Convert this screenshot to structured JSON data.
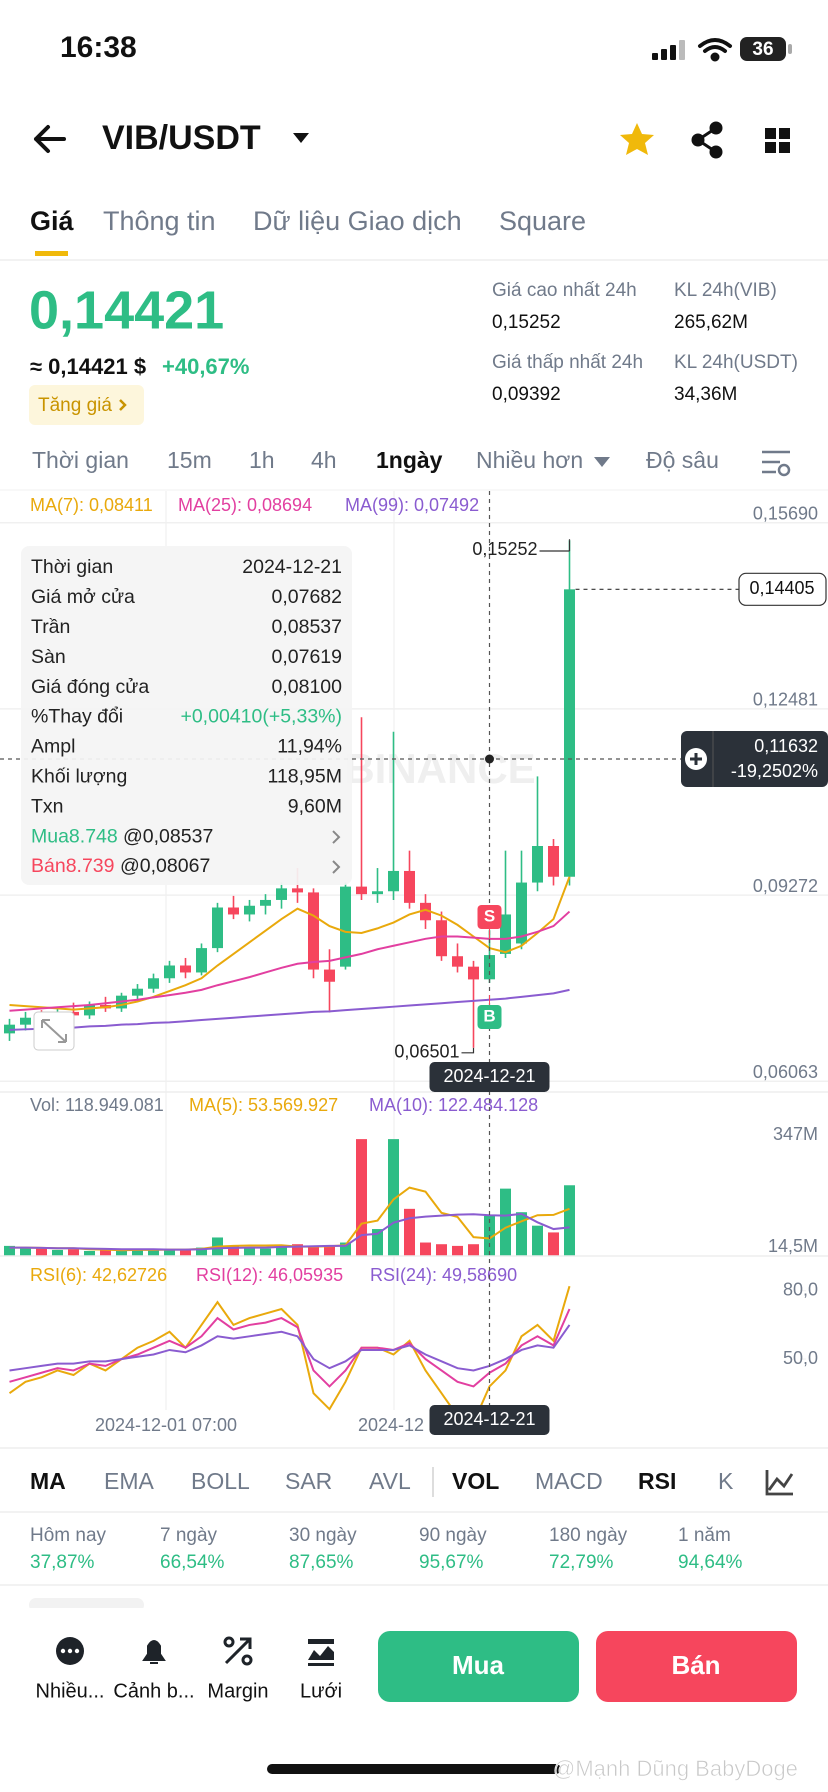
{
  "status_bar": {
    "time": "16:38",
    "battery": "36"
  },
  "header": {
    "pair": "VIB/USDT"
  },
  "tabs": [
    "Giá",
    "Thông tin",
    "Dữ liệu Giao dịch",
    "Square"
  ],
  "price": {
    "last": "0,14421",
    "approx": "≈ 0,14421 $",
    "change": "+40,67%",
    "badge": "Tăng giá"
  },
  "stats": [
    {
      "label": "Giá cao nhất 24h",
      "value": "0,15252"
    },
    {
      "label": "KL 24h(VIB)",
      "value": "265,62M"
    },
    {
      "label": "Giá thấp nhất 24h",
      "value": "0,09392"
    },
    {
      "label": "KL 24h(USDT)",
      "value": "34,36M"
    }
  ],
  "intervals": [
    "Thời gian",
    "15m",
    "1h",
    "4h",
    "1ngày",
    "Nhiều hơn",
    "Độ sâu"
  ],
  "chart_data": {
    "type": "candlestick",
    "ylim": [
      0.0586,
      0.161
    ],
    "yticks": [
      {
        "value": 0.1569,
        "label": "0,15690"
      },
      {
        "value": 0.12481,
        "label": "0,12481"
      },
      {
        "value": 0.09272,
        "label": "0,09272"
      },
      {
        "value": 0.06063,
        "label": "0,06063"
      }
    ],
    "ohlc": [
      [
        0.0675,
        0.07,
        0.0662,
        0.069
      ],
      [
        0.069,
        0.0712,
        0.068,
        0.0702
      ],
      [
        0.0702,
        0.0715,
        0.069,
        0.0698
      ],
      [
        0.0698,
        0.072,
        0.0692,
        0.0712
      ],
      [
        0.0712,
        0.0728,
        0.07,
        0.0706
      ],
      [
        0.0706,
        0.073,
        0.07,
        0.0724
      ],
      [
        0.0724,
        0.0738,
        0.0712,
        0.0718
      ],
      [
        0.0718,
        0.0745,
        0.0712,
        0.074
      ],
      [
        0.074,
        0.076,
        0.073,
        0.0752
      ],
      [
        0.0752,
        0.0778,
        0.0745,
        0.077
      ],
      [
        0.077,
        0.08,
        0.0762,
        0.0792
      ],
      [
        0.0792,
        0.0805,
        0.077,
        0.078
      ],
      [
        0.078,
        0.083,
        0.0775,
        0.0822
      ],
      [
        0.0822,
        0.09,
        0.0815,
        0.0892
      ],
      [
        0.0892,
        0.0912,
        0.0872,
        0.088
      ],
      [
        0.088,
        0.0905,
        0.0868,
        0.0895
      ],
      [
        0.0895,
        0.0915,
        0.088,
        0.0905
      ],
      [
        0.0905,
        0.0935,
        0.089,
        0.0925
      ],
      [
        0.0925,
        0.096,
        0.09,
        0.0918
      ],
      [
        0.0918,
        0.0925,
        0.077,
        0.0785
      ],
      [
        0.0785,
        0.082,
        0.0711,
        0.0764
      ],
      [
        0.079,
        0.0935,
        0.0785,
        0.0928
      ],
      [
        0.0928,
        0.122,
        0.0905,
        0.0915
      ],
      [
        0.0915,
        0.096,
        0.09,
        0.092
      ],
      [
        0.092,
        0.1195,
        0.0905,
        0.0955
      ],
      [
        0.0955,
        0.099,
        0.089,
        0.09
      ],
      [
        0.09,
        0.0915,
        0.0855,
        0.087
      ],
      [
        0.087,
        0.0885,
        0.08,
        0.0808
      ],
      [
        0.0808,
        0.083,
        0.078,
        0.079
      ],
      [
        0.079,
        0.08,
        0.06501,
        0.0768
      ],
      [
        0.07682,
        0.08537,
        0.07619,
        0.081
      ],
      [
        0.0812,
        0.099,
        0.0805,
        0.088
      ],
      [
        0.083,
        0.099,
        0.082,
        0.0935
      ],
      [
        0.0935,
        0.1118,
        0.092,
        0.0998
      ],
      [
        0.0998,
        0.101,
        0.093,
        0.0945
      ],
      [
        0.0945,
        0.15252,
        0.093,
        0.14405
      ]
    ],
    "ma": [
      {
        "name": "MA(7): 0,08411",
        "color": "#e9a90c",
        "values": [
          0.0724,
          0.0722,
          0.072,
          0.0718,
          0.0716,
          0.0718,
          0.072,
          0.0724,
          0.073,
          0.0738,
          0.0748,
          0.0758,
          0.077,
          0.0792,
          0.0812,
          0.0832,
          0.0852,
          0.0872,
          0.089,
          0.0878,
          0.086,
          0.085,
          0.0848,
          0.0856,
          0.0866,
          0.088,
          0.0888,
          0.0878,
          0.0862,
          0.0842,
          0.0822,
          0.0815,
          0.0826,
          0.0848,
          0.0872,
          0.0945
        ]
      },
      {
        "name": "MA(25): 0,08694",
        "color": "#e23fa0",
        "values": [
          0.0714,
          0.0716,
          0.0718,
          0.072,
          0.0722,
          0.0724,
          0.0727,
          0.073,
          0.0733,
          0.0737,
          0.0741,
          0.0745,
          0.075,
          0.0758,
          0.0765,
          0.0772,
          0.078,
          0.0788,
          0.0795,
          0.0798,
          0.08,
          0.0806,
          0.0812,
          0.082,
          0.0826,
          0.0832,
          0.0838,
          0.0842,
          0.0842,
          0.084,
          0.0838,
          0.0838,
          0.0842,
          0.085,
          0.086,
          0.0885
        ]
      },
      {
        "name": "MA(99): 0,07492",
        "color": "#8a5cd0",
        "values": [
          0.0681,
          0.0682,
          0.0683,
          0.0684,
          0.0685,
          0.0687,
          0.0688,
          0.069,
          0.0691,
          0.0693,
          0.0694,
          0.0696,
          0.0698,
          0.07,
          0.0702,
          0.0704,
          0.0706,
          0.0708,
          0.071,
          0.0712,
          0.0713,
          0.0715,
          0.0717,
          0.0719,
          0.0721,
          0.0723,
          0.0725,
          0.0727,
          0.0729,
          0.0731,
          0.0733,
          0.0735,
          0.0738,
          0.0741,
          0.0744,
          0.075
        ]
      }
    ],
    "tooltip": [
      [
        "Thời gian",
        "2024-12-21"
      ],
      [
        "Giá mở cửa",
        "0,07682"
      ],
      [
        "Trần",
        "0,08537"
      ],
      [
        "Sàn",
        "0,07619"
      ],
      [
        "Giá đóng cửa",
        "0,08100"
      ],
      [
        "%Thay đổi",
        "+0,00410(+5,33%)"
      ],
      [
        "Ampl",
        "11,94%"
      ],
      [
        "Khối lượng",
        "118,95M"
      ],
      [
        "Txn",
        "9,60M"
      ],
      [
        "Mua8.748",
        "@0,08537"
      ],
      [
        "Bán8.739",
        "@0,08067"
      ]
    ],
    "high_label": "0,15252",
    "low_label": "0,06501",
    "last_label": "0,14405",
    "crosshair": {
      "date": "2024-12-21",
      "price": "0,11632",
      "change": "-19,2502%"
    },
    "markers": [
      "S",
      "B"
    ],
    "watermark": "BINANCE",
    "volume": {
      "legend": [
        "Vol: 118.949.081",
        "MA(5): 53.569.927",
        "MA(10): 122.484.128"
      ],
      "ylim": [
        0,
        475
      ],
      "yticks": [
        {
          "value": 347,
          "label": "347M"
        },
        {
          "value": 14.5,
          "label": "14,5M"
        }
      ],
      "values": [
        30,
        25,
        22,
        18,
        20,
        15,
        18,
        16,
        20,
        22,
        18,
        20,
        25,
        55,
        30,
        25,
        22,
        30,
        35,
        30,
        28,
        40,
        347,
        80,
        347,
        140,
        40,
        35,
        30,
        35,
        118.95,
        200,
        130,
        90,
        70,
        210
      ],
      "ma5": [
        25,
        25,
        24,
        23,
        23,
        20,
        19,
        17,
        18,
        18,
        19,
        19,
        21,
        28,
        30,
        31,
        31,
        32,
        28,
        28,
        29,
        32,
        96,
        105,
        168,
        203,
        191,
        128,
        116,
        56,
        52,
        84,
        103,
        121,
        122,
        140
      ],
      "ma10": [
        25,
        25,
        24,
        23,
        23,
        22,
        21,
        20,
        20,
        20,
        19,
        19,
        20,
        23,
        24,
        25,
        25,
        27,
        28,
        29,
        30,
        30,
        62,
        66,
        99,
        112,
        117,
        120,
        123,
        124,
        121,
        120,
        125,
        100,
        80,
        85
      ]
    },
    "rsi": {
      "legend": [
        "RSI(6): 42,62726",
        "RSI(12): 46,05935",
        "RSI(24): 49,58690"
      ],
      "ylim": [
        25,
        90
      ],
      "yticks": [
        {
          "value": 80,
          "label": "80,0"
        },
        {
          "value": 50,
          "label": "50,0"
        }
      ],
      "series": [
        {
          "color": "#e9a90c",
          "values": [
            35,
            40,
            42,
            45,
            43,
            48,
            45,
            50,
            55,
            58,
            62,
            55,
            65,
            75,
            65,
            68,
            70,
            72,
            65,
            35,
            28,
            40,
            55,
            55,
            52,
            58,
            45,
            35,
            25,
            22,
            38,
            45,
            60,
            65,
            58,
            82
          ]
        },
        {
          "color": "#e23fa0",
          "values": [
            40,
            42,
            44,
            46,
            45,
            48,
            47,
            50,
            52,
            55,
            58,
            55,
            60,
            68,
            63,
            65,
            66,
            68,
            64,
            45,
            38,
            45,
            55,
            55,
            54,
            57,
            50,
            45,
            40,
            38,
            44,
            48,
            56,
            60,
            56,
            72
          ]
        },
        {
          "color": "#8a5cd0",
          "values": [
            45,
            46,
            47,
            48,
            48,
            49,
            49,
            50,
            51,
            52,
            54,
            53,
            56,
            60,
            59,
            60,
            61,
            62,
            60,
            50,
            46,
            49,
            54,
            54,
            54,
            56,
            52,
            49,
            46,
            45,
            47,
            50,
            54,
            56,
            55,
            65
          ]
        }
      ]
    },
    "xlabels": [
      "2024-12-01 07:00",
      "2024-12"
    ]
  },
  "indicators": [
    "MA",
    "EMA",
    "BOLL",
    "SAR",
    "AVL",
    "VOL",
    "MACD",
    "RSI",
    "K"
  ],
  "performance": [
    {
      "label": "Hôm nay",
      "value": "37,87%"
    },
    {
      "label": "7 ngày",
      "value": "66,54%"
    },
    {
      "label": "30 ngày",
      "value": "87,65%"
    },
    {
      "label": "90 ngày",
      "value": "95,67%"
    },
    {
      "label": "180 ngày",
      "value": "72,79%"
    },
    {
      "label": "1 năm",
      "value": "94,64%"
    }
  ],
  "actions": [
    "Nhiều...",
    "Cảnh b...",
    "Margin",
    "Lưới"
  ],
  "buy": "Mua",
  "sell": "Bán",
  "credit": "@Mạnh Dũng BabyDoge"
}
